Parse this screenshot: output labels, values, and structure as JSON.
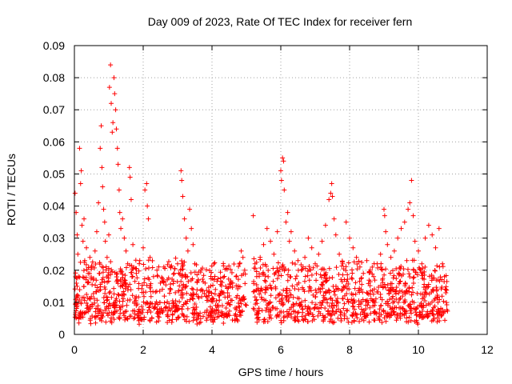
{
  "chart_data": {
    "type": "scatter",
    "title": "Day 009 of 2023, Rate Of TEC Index for receiver fern",
    "xlabel": "GPS time / hours",
    "ylabel": "ROTI / TECUs",
    "xlim": [
      0,
      12
    ],
    "ylim": [
      0,
      0.09
    ],
    "x_ticks": [
      "0",
      "2",
      "4",
      "6",
      "8",
      "10",
      "12"
    ],
    "y_ticks": [
      "0",
      "0.01",
      "0.02",
      "0.03",
      "0.04",
      "0.05",
      "0.06",
      "0.07",
      "0.08",
      "0.09"
    ],
    "grid": true,
    "marker": "+",
    "series_color": "#ff0000",
    "series": [
      {
        "name": "ROTI",
        "points": [
          [
            0.02,
            0.044
          ],
          [
            0.05,
            0.038
          ],
          [
            0.08,
            0.031
          ],
          [
            0.1,
            0.025
          ],
          [
            0.12,
            0.018
          ],
          [
            0.15,
            0.058
          ],
          [
            0.18,
            0.047
          ],
          [
            0.2,
            0.051
          ],
          [
            0.22,
            0.034
          ],
          [
            0.25,
            0.029
          ],
          [
            0.28,
            0.036
          ],
          [
            0.3,
            0.023
          ],
          [
            0.35,
            0.027
          ],
          [
            0.4,
            0.019
          ],
          [
            0.45,
            0.024
          ],
          [
            0.5,
            0.021
          ],
          [
            0.55,
            0.017
          ],
          [
            0.6,
            0.026
          ],
          [
            0.65,
            0.032
          ],
          [
            0.7,
            0.041
          ],
          [
            0.75,
            0.058
          ],
          [
            0.78,
            0.065
          ],
          [
            0.8,
            0.052
          ],
          [
            0.82,
            0.046
          ],
          [
            0.85,
            0.039
          ],
          [
            0.88,
            0.035
          ],
          [
            0.9,
            0.029
          ],
          [
            0.95,
            0.024
          ],
          [
            1.0,
            0.031
          ],
          [
            1.02,
            0.077
          ],
          [
            1.05,
            0.084
          ],
          [
            1.07,
            0.072
          ],
          [
            1.1,
            0.063
          ],
          [
            1.12,
            0.066
          ],
          [
            1.15,
            0.08
          ],
          [
            1.17,
            0.075
          ],
          [
            1.2,
            0.07
          ],
          [
            1.22,
            0.064
          ],
          [
            1.25,
            0.058
          ],
          [
            1.27,
            0.053
          ],
          [
            1.3,
            0.045
          ],
          [
            1.32,
            0.038
          ],
          [
            1.35,
            0.033
          ],
          [
            1.4,
            0.036
          ],
          [
            1.45,
            0.03
          ],
          [
            1.5,
            0.026
          ],
          [
            1.55,
            0.022
          ],
          [
            1.6,
            0.052
          ],
          [
            1.62,
            0.049
          ],
          [
            1.65,
            0.042
          ],
          [
            1.7,
            0.028
          ],
          [
            1.8,
            0.019
          ],
          [
            1.9,
            0.023
          ],
          [
            2.0,
            0.027
          ],
          [
            2.05,
            0.045
          ],
          [
            2.1,
            0.047
          ],
          [
            2.12,
            0.04
          ],
          [
            2.15,
            0.036
          ],
          [
            2.2,
            0.024
          ],
          [
            2.3,
            0.018
          ],
          [
            2.4,
            0.02
          ],
          [
            2.5,
            0.016
          ],
          [
            2.6,
            0.021
          ],
          [
            2.7,
            0.017
          ],
          [
            2.8,
            0.014
          ],
          [
            2.9,
            0.019
          ],
          [
            3.0,
            0.022
          ],
          [
            3.1,
            0.051
          ],
          [
            3.12,
            0.048
          ],
          [
            3.15,
            0.043
          ],
          [
            3.2,
            0.036
          ],
          [
            3.25,
            0.03
          ],
          [
            3.3,
            0.026
          ],
          [
            3.35,
            0.039
          ],
          [
            3.4,
            0.033
          ],
          [
            3.45,
            0.028
          ],
          [
            3.5,
            0.022
          ],
          [
            3.6,
            0.017
          ],
          [
            3.7,
            0.014
          ],
          [
            3.8,
            0.016
          ],
          [
            3.9,
            0.013
          ],
          [
            4.0,
            0.011
          ],
          [
            4.1,
            0.014
          ],
          [
            4.2,
            0.012
          ],
          [
            4.3,
            0.013
          ],
          [
            4.4,
            0.015
          ],
          [
            4.5,
            0.012
          ],
          [
            4.6,
            0.016
          ],
          [
            4.7,
            0.018
          ],
          [
            4.8,
            0.022
          ],
          [
            4.85,
            0.026
          ],
          [
            4.9,
            0.024
          ],
          [
            4.95,
            0.02
          ],
          [
            5.2,
            0.037
          ],
          [
            5.25,
            0.022
          ],
          [
            5.3,
            0.018
          ],
          [
            5.4,
            0.024
          ],
          [
            5.5,
            0.028
          ],
          [
            5.6,
            0.033
          ],
          [
            5.7,
            0.029
          ],
          [
            5.8,
            0.025
          ],
          [
            5.9,
            0.032
          ],
          [
            6.0,
            0.051
          ],
          [
            6.02,
            0.048
          ],
          [
            6.05,
            0.055
          ],
          [
            6.08,
            0.054
          ],
          [
            6.1,
            0.045
          ],
          [
            6.15,
            0.035
          ],
          [
            6.2,
            0.038
          ],
          [
            6.25,
            0.029
          ],
          [
            6.3,
            0.032
          ],
          [
            6.4,
            0.026
          ],
          [
            6.5,
            0.023
          ],
          [
            6.6,
            0.02
          ],
          [
            6.7,
            0.024
          ],
          [
            6.8,
            0.03
          ],
          [
            6.9,
            0.027
          ],
          [
            7.0,
            0.022
          ],
          [
            7.1,
            0.025
          ],
          [
            7.2,
            0.029
          ],
          [
            7.3,
            0.034
          ],
          [
            7.4,
            0.042
          ],
          [
            7.45,
            0.044
          ],
          [
            7.48,
            0.047
          ],
          [
            7.5,
            0.043
          ],
          [
            7.55,
            0.036
          ],
          [
            7.6,
            0.031
          ],
          [
            7.7,
            0.025
          ],
          [
            7.8,
            0.022
          ],
          [
            7.9,
            0.035
          ],
          [
            8.0,
            0.03
          ],
          [
            8.1,
            0.027
          ],
          [
            8.2,
            0.024
          ],
          [
            8.3,
            0.021
          ],
          [
            8.4,
            0.019
          ],
          [
            8.5,
            0.023
          ],
          [
            8.6,
            0.02
          ],
          [
            8.7,
            0.018
          ],
          [
            8.8,
            0.022
          ],
          [
            8.9,
            0.025
          ],
          [
            9.0,
            0.039
          ],
          [
            9.02,
            0.037
          ],
          [
            9.05,
            0.032
          ],
          [
            9.1,
            0.028
          ],
          [
            9.2,
            0.024
          ],
          [
            9.3,
            0.026
          ],
          [
            9.4,
            0.03
          ],
          [
            9.5,
            0.033
          ],
          [
            9.6,
            0.035
          ],
          [
            9.7,
            0.039
          ],
          [
            9.75,
            0.041
          ],
          [
            9.8,
            0.048
          ],
          [
            9.85,
            0.037
          ],
          [
            9.9,
            0.029
          ],
          [
            10.0,
            0.026
          ],
          [
            10.1,
            0.022
          ],
          [
            10.2,
            0.03
          ],
          [
            10.3,
            0.034
          ],
          [
            10.4,
            0.031
          ],
          [
            10.5,
            0.027
          ],
          [
            10.6,
            0.033
          ],
          [
            10.7,
            0.022
          ],
          [
            10.8,
            0.014
          ]
        ]
      }
    ],
    "base_band": {
      "description": "dense cluster of ROTI values between about 0.003 and 0.02 across 0–10.8 h (gap near 5.0–5.2 h)",
      "x_range": [
        0.0,
        10.85
      ],
      "gap": [
        5.0,
        5.2
      ],
      "typical_min": 0.003,
      "typical_max": 0.02
    }
  }
}
